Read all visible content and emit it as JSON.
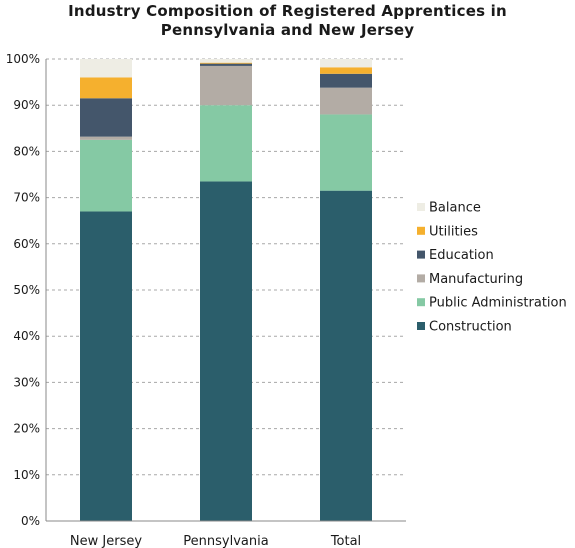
{
  "chart_data": {
    "type": "bar",
    "stacked": true,
    "title": [
      "Industry Composition of Registered Apprentices in",
      "Pennsylvania and New Jersey"
    ],
    "categories": [
      "New Jersey",
      "Pennsylvania",
      "Total"
    ],
    "series": [
      {
        "name": "Construction",
        "color": "#2b5e6b",
        "values": [
          67,
          73.5,
          71.5
        ]
      },
      {
        "name": "Public Administration",
        "color": "#85c9a4",
        "values": [
          15.5,
          16.5,
          16.5
        ]
      },
      {
        "name": "Manufacturing",
        "color": "#b3aca5",
        "values": [
          0.7,
          8.5,
          5.8
        ]
      },
      {
        "name": "Education",
        "color": "#44566b",
        "values": [
          8.3,
          0.5,
          3.0
        ]
      },
      {
        "name": "Utilities",
        "color": "#f5b02e",
        "values": [
          4.5,
          0.2,
          1.4
        ]
      },
      {
        "name": "Balance",
        "color": "#eeede4",
        "values": [
          4.0,
          0.8,
          1.8
        ]
      }
    ],
    "ylim": [
      0,
      100
    ],
    "yticks": [
      "0%",
      "10%",
      "20%",
      "30%",
      "40%",
      "50%",
      "60%",
      "70%",
      "80%",
      "90%",
      "100%"
    ],
    "grid": true,
    "legend_position": "right",
    "legend_order": [
      "Balance",
      "Utilities",
      "Education",
      "Manufacturing",
      "Public Administration",
      "Construction"
    ]
  }
}
